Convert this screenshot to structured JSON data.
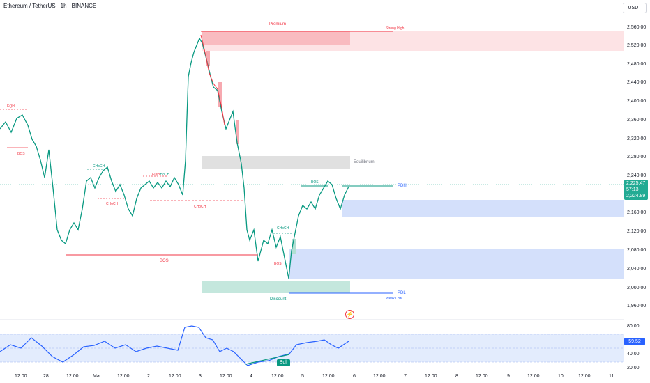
{
  "header": {
    "title": "Ethereum / TetherUS · 1h · BINANCE",
    "currency": "USDT"
  },
  "price_axis": [
    "2,560.00",
    "2,520.00",
    "2,480.00",
    "2,440.00",
    "2,400.00",
    "2,360.00",
    "2,320.00",
    "2,280.00",
    "2,240.00",
    "2,160.00",
    "2,120.00",
    "2,080.00",
    "2,040.00",
    "2,000.00",
    "1,960.00"
  ],
  "price_tag": {
    "last": "2,225.47",
    "countdown": "57:13",
    "prev": "2,224.89"
  },
  "rsi_axis": [
    "80.00",
    "40.00",
    "20.00"
  ],
  "rsi_value": "59.52",
  "time_axis": [
    "12:00",
    "28",
    "12:00",
    "Mar",
    "12:00",
    "2",
    "12:00",
    "3",
    "12:00",
    "4",
    "12:00",
    "5",
    "12:00",
    "6",
    "12:00",
    "7",
    "12:00",
    "8",
    "12:00",
    "9",
    "12:00",
    "10",
    "12:00",
    "11"
  ],
  "zones": {
    "premium": "Premium",
    "strong_high": "Strong High",
    "equilibrium": "Equilibrium",
    "discount": "Discount",
    "weak_low": "Weak Low",
    "pdh": "PDH",
    "pdl": "PDL"
  },
  "structure_labels": {
    "eqh_1": "EQH",
    "bos_1": "BOS",
    "choch_1": "CHoCH",
    "choch_2": "CHoCH",
    "eqh_2": "EQH",
    "choch_3": "CHoCH",
    "choch_4": "CHoCH",
    "bos_2": "BOS",
    "choch_5": "CHoCH",
    "bos_3": "BOS",
    "bos_4": "BOS"
  },
  "rsi_signal": "Bull",
  "colors": {
    "bull": "#089981",
    "bear": "#f23645",
    "rsi": "#2962ff",
    "premium_zone": "#f7c5c9",
    "discount_zone": "#b2dfd3",
    "demand_zone": "#cfdcfb",
    "eq_zone": "#d9d9d9"
  }
}
